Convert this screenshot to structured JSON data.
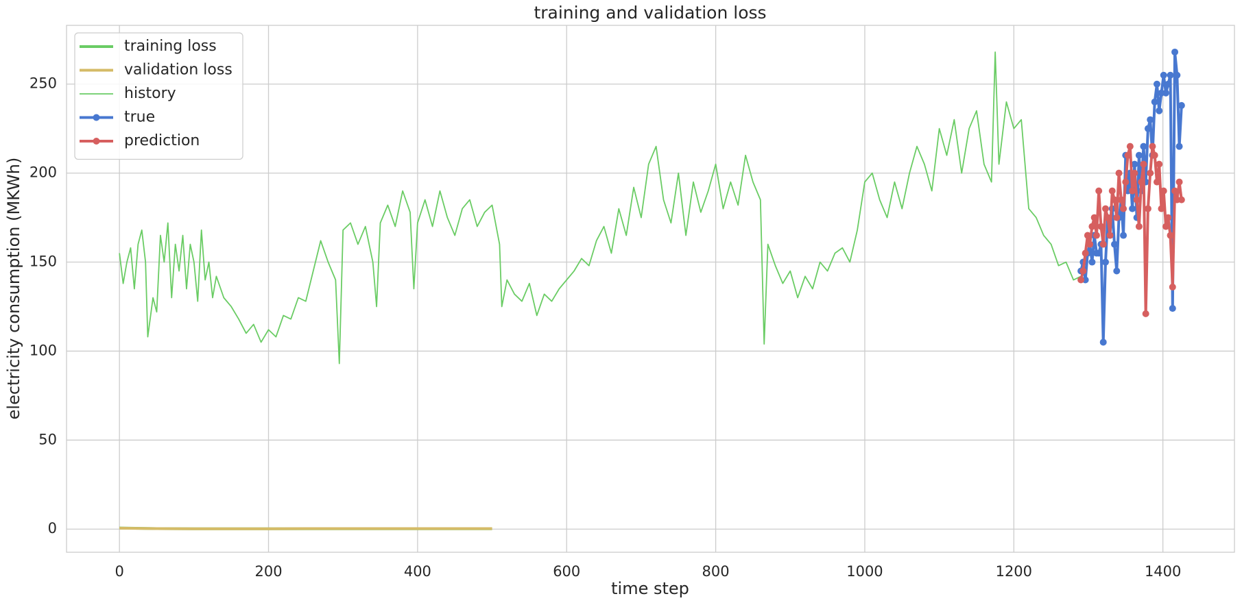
{
  "chart_data": {
    "type": "line",
    "title": "training and validation loss",
    "x_label": "time step",
    "y_label": "electricity consumption (MKWh)",
    "xlim": [
      -71,
      1496
    ],
    "ylim": [
      -13,
      283
    ],
    "xticks": [
      0,
      200,
      400,
      600,
      800,
      1000,
      1200,
      1400
    ],
    "yticks": [
      0,
      50,
      100,
      150,
      200,
      250
    ],
    "grid": true,
    "legend": "upper left",
    "series": [
      {
        "name": "training loss",
        "color": "#6acc64",
        "line": "thick",
        "marker": false,
        "x": [
          0,
          50,
          100,
          150,
          200,
          250,
          300,
          350,
          400,
          450,
          500
        ],
        "values": [
          0.6,
          0.3,
          0.2,
          0.2,
          0.2,
          0.2,
          0.2,
          0.2,
          0.2,
          0.2,
          0.2
        ]
      },
      {
        "name": "validation loss",
        "color": "#d5bb67",
        "line": "thick",
        "marker": false,
        "x": [
          0,
          50,
          100,
          150,
          200,
          250,
          300,
          350,
          400,
          450,
          500
        ],
        "values": [
          0.5,
          0.3,
          0.2,
          0.2,
          0.2,
          0.3,
          0.3,
          0.3,
          0.3,
          0.3,
          0.3
        ]
      },
      {
        "name": "history",
        "color": "#6acc64",
        "line": "thin",
        "marker": false,
        "x": [
          0,
          5,
          10,
          15,
          20,
          25,
          30,
          35,
          38,
          45,
          50,
          55,
          60,
          65,
          70,
          75,
          80,
          85,
          90,
          95,
          100,
          105,
          110,
          115,
          120,
          125,
          130,
          140,
          150,
          160,
          170,
          180,
          190,
          200,
          210,
          220,
          230,
          240,
          250,
          260,
          270,
          280,
          290,
          295,
          300,
          310,
          320,
          330,
          340,
          345,
          350,
          360,
          370,
          380,
          390,
          395,
          400,
          410,
          420,
          430,
          440,
          450,
          460,
          470,
          480,
          490,
          500,
          510,
          513,
          520,
          530,
          540,
          550,
          560,
          570,
          580,
          590,
          600,
          610,
          620,
          630,
          640,
          650,
          660,
          670,
          680,
          690,
          700,
          710,
          720,
          730,
          740,
          750,
          760,
          770,
          780,
          790,
          800,
          810,
          820,
          830,
          840,
          850,
          860,
          865,
          870,
          880,
          890,
          900,
          910,
          920,
          930,
          940,
          950,
          960,
          970,
          980,
          990,
          1000,
          1010,
          1020,
          1030,
          1040,
          1050,
          1060,
          1070,
          1080,
          1090,
          1100,
          1110,
          1120,
          1130,
          1140,
          1150,
          1160,
          1170,
          1175,
          1180,
          1190,
          1200,
          1210,
          1220,
          1230,
          1240,
          1250,
          1260,
          1270,
          1280,
          1290
        ],
        "values": [
          155,
          138,
          150,
          158,
          135,
          160,
          168,
          150,
          108,
          130,
          122,
          165,
          150,
          172,
          130,
          160,
          145,
          165,
          135,
          160,
          150,
          128,
          168,
          140,
          150,
          130,
          142,
          130,
          125,
          118,
          110,
          115,
          105,
          112,
          108,
          120,
          118,
          130,
          128,
          145,
          162,
          150,
          140,
          93,
          168,
          172,
          160,
          170,
          150,
          125,
          172,
          182,
          170,
          190,
          178,
          135,
          172,
          185,
          170,
          190,
          175,
          165,
          180,
          185,
          170,
          178,
          182,
          160,
          125,
          140,
          132,
          128,
          138,
          120,
          132,
          128,
          135,
          140,
          145,
          152,
          148,
          162,
          170,
          155,
          180,
          165,
          192,
          175,
          205,
          215,
          185,
          172,
          200,
          165,
          195,
          178,
          190,
          205,
          180,
          195,
          182,
          210,
          195,
          185,
          104,
          160,
          148,
          138,
          145,
          130,
          142,
          135,
          150,
          145,
          155,
          158,
          150,
          168,
          195,
          200,
          185,
          175,
          195,
          180,
          200,
          215,
          205,
          190,
          225,
          210,
          230,
          200,
          225,
          235,
          205,
          195,
          268,
          205,
          240,
          225,
          230,
          180,
          175,
          165,
          160,
          148,
          150,
          140,
          142
        ]
      },
      {
        "name": "true",
        "color": "#4878d0",
        "line": "thick",
        "marker": true,
        "x": [
          1290,
          1293,
          1296,
          1299,
          1302,
          1305,
          1308,
          1311,
          1314,
          1317,
          1320,
          1323,
          1326,
          1329,
          1332,
          1335,
          1338,
          1341,
          1344,
          1347,
          1350,
          1353,
          1356,
          1359,
          1362,
          1365,
          1368,
          1371,
          1374,
          1377,
          1380,
          1383,
          1386,
          1389,
          1392,
          1395,
          1398,
          1401,
          1404,
          1407,
          1410,
          1413,
          1416,
          1419,
          1422,
          1425
        ],
        "values": [
          145,
          150,
          140,
          155,
          160,
          150,
          165,
          155,
          155,
          160,
          105,
          150,
          175,
          165,
          180,
          160,
          145,
          175,
          185,
          165,
          210,
          190,
          200,
          180,
          205,
          175,
          210,
          190,
          215,
          195,
          225,
          230,
          210,
          240,
          250,
          235,
          245,
          255,
          245,
          250,
          255,
          124,
          268,
          255,
          215,
          238
        ]
      },
      {
        "name": "prediction",
        "color": "#d65f5f",
        "line": "thick",
        "marker": true,
        "x": [
          1290,
          1293,
          1296,
          1299,
          1302,
          1305,
          1308,
          1311,
          1314,
          1317,
          1320,
          1323,
          1326,
          1329,
          1332,
          1335,
          1338,
          1341,
          1344,
          1347,
          1350,
          1353,
          1356,
          1359,
          1362,
          1365,
          1368,
          1371,
          1374,
          1377,
          1380,
          1383,
          1386,
          1389,
          1392,
          1395,
          1398,
          1401,
          1404,
          1407,
          1410,
          1413,
          1416,
          1419,
          1422,
          1425
        ],
        "values": [
          140,
          145,
          155,
          165,
          160,
          170,
          175,
          165,
          190,
          170,
          160,
          180,
          175,
          165,
          190,
          185,
          175,
          200,
          185,
          180,
          195,
          210,
          215,
          190,
          200,
          185,
          170,
          195,
          205,
          121,
          180,
          200,
          215,
          210,
          195,
          205,
          180,
          190,
          170,
          175,
          165,
          136,
          190,
          185,
          195,
          185
        ]
      }
    ]
  }
}
